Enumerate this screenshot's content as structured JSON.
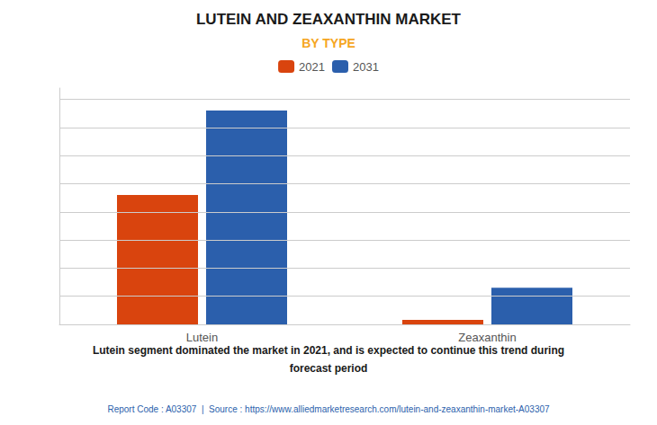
{
  "chart_data": {
    "type": "bar",
    "title": "LUTEIN AND ZEAXANTHIN MARKET",
    "subtitle": "BY TYPE",
    "categories": [
      "Lutein",
      "Zeaxanthin"
    ],
    "series": [
      {
        "name": "2021",
        "color": "#d9440e",
        "values": [
          230,
          8
        ]
      },
      {
        "name": "2031",
        "color": "#2b5fac",
        "values": [
          380,
          65
        ]
      }
    ],
    "ylim": [
      0,
      420
    ],
    "yticks": [
      0,
      50,
      100,
      150,
      200,
      250,
      300,
      350,
      400
    ],
    "grid": true,
    "legend": "top",
    "tick_labels": "x",
    "annotations": [
      "Lutein segment dominated the market in 2021, and is expected to continue this trend during",
      "forecast period"
    ],
    "footer": "Report Code : A03307  |  Source : https://www.alliedmarketresearch.com/lutein-and-zeaxanthin-market-A03307"
  }
}
